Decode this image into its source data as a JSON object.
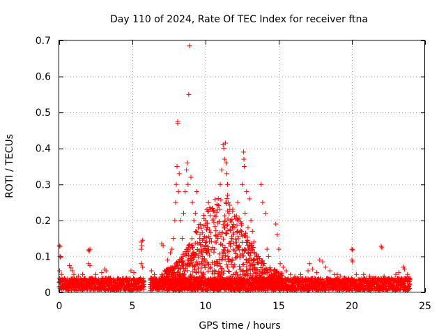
{
  "chart_data": {
    "type": "scatter",
    "title": "Day 110 of 2024, Rate Of TEC Index for receiver ftna",
    "xlabel": "GPS time / hours",
    "ylabel": "ROTI / TECUs",
    "xlim": [
      0,
      25
    ],
    "ylim": [
      0,
      0.7
    ],
    "xticks": [
      0,
      5,
      10,
      15,
      20,
      25
    ],
    "yticks": [
      0,
      0.1,
      0.2,
      0.3,
      0.4,
      0.5,
      0.6,
      0.7
    ],
    "xtick_labels": [
      "0",
      "5",
      "10",
      "15",
      "20",
      "25"
    ],
    "ytick_labels": [
      "0",
      "0.1",
      "0.2",
      "0.3",
      "0.4",
      "0.5",
      "0.6",
      "0.7"
    ],
    "grid": true,
    "marker": "+",
    "color": "#ff0000",
    "background_band": {
      "x_start": 0,
      "x_end": 24,
      "y_min": 0.005,
      "y_max": 0.04
    },
    "series": [
      {
        "name": "ROTI",
        "points": [
          [
            0.0,
            0.13
          ],
          [
            0.05,
            0.128
          ],
          [
            0.05,
            0.1
          ],
          [
            0.1,
            0.098
          ],
          [
            0.02,
            0.06
          ],
          [
            0.15,
            0.05
          ],
          [
            0.7,
            0.075
          ],
          [
            0.8,
            0.068
          ],
          [
            0.9,
            0.06
          ],
          [
            1.0,
            0.05
          ],
          [
            1.3,
            0.045
          ],
          [
            1.6,
            0.05
          ],
          [
            2.0,
            0.118
          ],
          [
            2.05,
            0.115
          ],
          [
            2.1,
            0.12
          ],
          [
            2.0,
            0.08
          ],
          [
            2.1,
            0.075
          ],
          [
            2.5,
            0.05
          ],
          [
            2.9,
            0.055
          ],
          [
            3.1,
            0.065
          ],
          [
            3.2,
            0.06
          ],
          [
            3.5,
            0.04
          ],
          [
            4.1,
            0.035
          ],
          [
            4.6,
            0.04
          ],
          [
            4.9,
            0.06
          ],
          [
            5.1,
            0.055
          ],
          [
            5.6,
            0.14
          ],
          [
            5.65,
            0.13
          ],
          [
            5.6,
            0.12
          ],
          [
            5.7,
            0.145
          ],
          [
            5.6,
            0.08
          ],
          [
            5.7,
            0.07
          ],
          [
            6.3,
            0.06
          ],
          [
            6.5,
            0.05
          ],
          [
            7.0,
            0.135
          ],
          [
            7.1,
            0.13
          ],
          [
            7.2,
            0.06
          ],
          [
            7.4,
            0.09
          ],
          [
            7.6,
            0.11
          ],
          [
            7.7,
            0.12
          ],
          [
            7.8,
            0.15
          ],
          [
            7.9,
            0.2
          ],
          [
            7.95,
            0.25
          ],
          [
            8.0,
            0.3
          ],
          [
            8.05,
            0.35
          ],
          [
            8.1,
            0.47
          ],
          [
            8.1,
            0.475
          ],
          [
            8.2,
            0.33
          ],
          [
            8.15,
            0.28
          ],
          [
            8.3,
            0.2
          ],
          [
            8.4,
            0.15
          ],
          [
            8.5,
            0.22
          ],
          [
            8.6,
            0.28
          ],
          [
            8.7,
            0.34
          ],
          [
            8.75,
            0.36
          ],
          [
            8.8,
            0.3
          ],
          [
            8.85,
            0.55
          ],
          [
            8.9,
            0.685
          ],
          [
            9.0,
            0.32
          ],
          [
            9.1,
            0.25
          ],
          [
            9.2,
            0.2
          ],
          [
            9.3,
            0.22
          ],
          [
            9.4,
            0.28
          ],
          [
            9.5,
            0.18
          ],
          [
            9.6,
            0.15
          ],
          [
            9.7,
            0.12
          ],
          [
            9.8,
            0.1
          ],
          [
            9.9,
            0.09
          ],
          [
            10.0,
            0.2
          ],
          [
            10.1,
            0.18
          ],
          [
            10.2,
            0.25
          ],
          [
            10.3,
            0.15
          ],
          [
            10.5,
            0.2
          ],
          [
            10.6,
            0.12
          ],
          [
            10.8,
            0.08
          ],
          [
            11.0,
            0.3
          ],
          [
            11.1,
            0.34
          ],
          [
            11.2,
            0.41
          ],
          [
            11.25,
            0.4
          ],
          [
            11.3,
            0.37
          ],
          [
            11.35,
            0.415
          ],
          [
            11.4,
            0.36
          ],
          [
            11.45,
            0.33
          ],
          [
            11.5,
            0.3
          ],
          [
            11.5,
            0.27
          ],
          [
            11.55,
            0.25
          ],
          [
            11.6,
            0.22
          ],
          [
            11.7,
            0.2
          ],
          [
            11.8,
            0.15
          ],
          [
            12.0,
            0.18
          ],
          [
            12.2,
            0.25
          ],
          [
            12.3,
            0.13
          ],
          [
            12.5,
            0.3
          ],
          [
            12.6,
            0.39
          ],
          [
            12.62,
            0.37
          ],
          [
            12.65,
            0.35
          ],
          [
            12.7,
            0.22
          ],
          [
            12.8,
            0.28
          ],
          [
            12.9,
            0.18
          ],
          [
            13.0,
            0.26
          ],
          [
            13.1,
            0.2
          ],
          [
            13.2,
            0.17
          ],
          [
            13.3,
            0.14
          ],
          [
            13.5,
            0.1
          ],
          [
            13.8,
            0.3
          ],
          [
            13.9,
            0.25
          ],
          [
            14.1,
            0.22
          ],
          [
            14.2,
            0.12
          ],
          [
            14.3,
            0.1
          ],
          [
            14.8,
            0.19
          ],
          [
            14.9,
            0.16
          ],
          [
            15.0,
            0.12
          ],
          [
            15.1,
            0.08
          ],
          [
            15.3,
            0.07
          ],
          [
            15.5,
            0.06
          ],
          [
            15.8,
            0.05
          ],
          [
            16.1,
            0.045
          ],
          [
            16.5,
            0.05
          ],
          [
            17.0,
            0.06
          ],
          [
            17.1,
            0.08
          ],
          [
            17.3,
            0.065
          ],
          [
            17.6,
            0.055
          ],
          [
            17.8,
            0.09
          ],
          [
            18.0,
            0.085
          ],
          [
            18.2,
            0.07
          ],
          [
            18.5,
            0.06
          ],
          [
            18.8,
            0.05
          ],
          [
            19.0,
            0.05
          ],
          [
            19.2,
            0.045
          ],
          [
            19.5,
            0.04
          ],
          [
            20.0,
            0.12
          ],
          [
            20.05,
            0.118
          ],
          [
            20.0,
            0.09
          ],
          [
            20.05,
            0.085
          ],
          [
            20.3,
            0.05
          ],
          [
            20.8,
            0.05
          ],
          [
            21.2,
            0.045
          ],
          [
            21.5,
            0.04
          ],
          [
            22.0,
            0.128
          ],
          [
            22.05,
            0.124
          ],
          [
            22.2,
            0.045
          ],
          [
            22.7,
            0.04
          ],
          [
            23.0,
            0.05
          ],
          [
            23.2,
            0.055
          ],
          [
            23.5,
            0.07
          ],
          [
            23.6,
            0.065
          ],
          [
            23.8,
            0.05
          ],
          [
            23.9,
            0.04
          ]
        ]
      }
    ]
  }
}
